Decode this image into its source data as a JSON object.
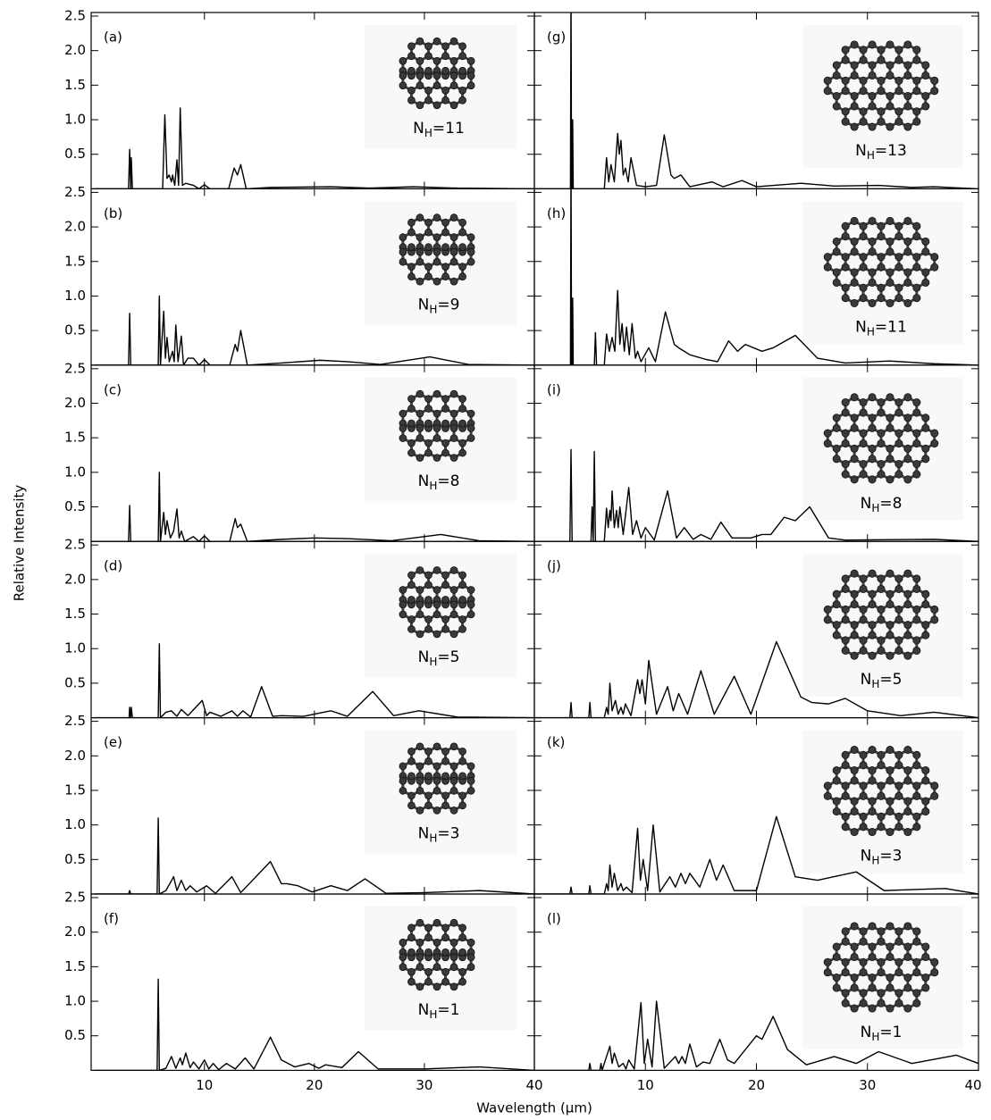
{
  "y_label": "Relative Intensity",
  "x_label": "Wavelength (μm)",
  "chart_data": [
    {
      "type": "line",
      "panel_label": "(a)",
      "inset_label": [
        "N",
        "H",
        "=11"
      ],
      "color": "#000000",
      "x": [
        0,
        3.1,
        3.2,
        3.3,
        3.35,
        3.45,
        6.2,
        6.4,
        6.6,
        6.8,
        7.0,
        7.1,
        7.3,
        7.5,
        7.65,
        7.8,
        8.0,
        8.3,
        9,
        9.5,
        10,
        10.5,
        12.2,
        12.7,
        13.0,
        13.3,
        13.8,
        16,
        21.5,
        25,
        29,
        33,
        40
      ],
      "values": [
        0,
        0,
        0.57,
        0,
        0.45,
        0,
        0,
        1.07,
        0.15,
        0.2,
        0.1,
        0.2,
        0.05,
        0.42,
        0.05,
        1.17,
        0.05,
        0.08,
        0.05,
        0,
        0.06,
        0,
        0,
        0.3,
        0.2,
        0.35,
        0,
        0.02,
        0.03,
        0.01,
        0.03,
        0.01,
        0
      ],
      "xlim": [
        -0.3,
        40
      ],
      "ylim": [
        0,
        2.5
      ],
      "xticks": [
        10,
        20,
        30,
        40
      ],
      "yticks": [
        0.5,
        {
          "value": 1,
          "label": "1.0"
        },
        1.5,
        {
          "value": 2,
          "label": "2.0"
        },
        2.5
      ]
    },
    {
      "type": "line",
      "panel_label": "(b)",
      "inset_label": [
        "N",
        "H",
        "=9"
      ],
      "color": "#000000",
      "x": [
        0,
        3.1,
        3.2,
        3.3,
        5.8,
        5.9,
        6.0,
        6.3,
        6.45,
        6.6,
        6.8,
        7.1,
        7.25,
        7.4,
        7.6,
        7.9,
        8.1,
        8.5,
        9,
        9.5,
        10,
        10.5,
        12.3,
        12.8,
        13.0,
        13.3,
        13.9,
        17,
        20.5,
        23,
        26,
        30.5,
        34,
        40
      ],
      "values": [
        0,
        0,
        0.75,
        0,
        0,
        1.0,
        0,
        0.78,
        0.1,
        0.4,
        0.05,
        0.2,
        0.05,
        0.58,
        0.05,
        0.42,
        0,
        0.1,
        0.1,
        0,
        0.08,
        0,
        0,
        0.3,
        0.2,
        0.5,
        0,
        0.03,
        0.07,
        0.05,
        0.01,
        0.12,
        0.01,
        0
      ],
      "xlim": [
        -0.3,
        40
      ],
      "ylim": [
        0,
        2.5
      ],
      "xticks": [
        10,
        20,
        30,
        40
      ],
      "yticks": [
        0.5,
        {
          "value": 1,
          "label": "1.0"
        },
        1.5,
        {
          "value": 2,
          "label": "2.0"
        },
        2.5
      ]
    },
    {
      "type": "line",
      "panel_label": "(c)",
      "inset_label": [
        "N",
        "H",
        "=8"
      ],
      "color": "#000000",
      "x": [
        0,
        3.1,
        3.2,
        3.3,
        5.8,
        5.9,
        6.0,
        6.3,
        6.45,
        6.6,
        6.9,
        7.2,
        7.5,
        7.7,
        7.9,
        8.2,
        9,
        9.5,
        10,
        10.5,
        12.3,
        12.8,
        13.0,
        13.3,
        13.9,
        17,
        20,
        23,
        27,
        31.5,
        35,
        40
      ],
      "values": [
        0,
        0,
        0.52,
        0,
        0,
        1.0,
        0,
        0.42,
        0.1,
        0.3,
        0.05,
        0.15,
        0.47,
        0.05,
        0.15,
        0,
        0.07,
        0,
        0.08,
        0,
        0,
        0.33,
        0.2,
        0.25,
        0,
        0.03,
        0.05,
        0.04,
        0.01,
        0.1,
        0.01,
        0
      ],
      "xlim": [
        -0.3,
        40
      ],
      "ylim": [
        0,
        2.5
      ],
      "xticks": [
        10,
        20,
        30,
        40
      ],
      "yticks": [
        0.5,
        {
          "value": 1,
          "label": "1.0"
        },
        1.5,
        {
          "value": 2,
          "label": "2.0"
        },
        2.5
      ]
    },
    {
      "type": "line",
      "panel_label": "(d)",
      "inset_label": [
        "N",
        "H",
        "=5"
      ],
      "color": "#000000",
      "x": [
        0,
        3.15,
        3.2,
        3.3,
        3.35,
        3.45,
        5.8,
        5.9,
        6.0,
        6.5,
        7.0,
        7.5,
        7.9,
        8.5,
        9.8,
        10.2,
        10.5,
        11.5,
        12.5,
        13,
        13.5,
        14.2,
        15.2,
        16.2,
        17,
        19,
        21.5,
        23,
        25.3,
        27.2,
        29.5,
        33,
        40
      ],
      "values": [
        0,
        0,
        0.15,
        0,
        0.15,
        0,
        0,
        1.07,
        0,
        0.08,
        0.1,
        0.02,
        0.12,
        0.03,
        0.25,
        0.03,
        0.08,
        0.02,
        0.1,
        0.02,
        0.1,
        0.01,
        0.45,
        0.02,
        0.03,
        0.02,
        0.1,
        0.02,
        0.38,
        0.03,
        0.1,
        0.01,
        0
      ],
      "xlim": [
        -0.3,
        40
      ],
      "ylim": [
        0,
        2.5
      ],
      "xticks": [
        10,
        20,
        30,
        40
      ],
      "yticks": [
        0.5,
        {
          "value": 1,
          "label": "1.0"
        },
        1.5,
        {
          "value": 2,
          "label": "2.0"
        },
        2.5
      ]
    },
    {
      "type": "line",
      "panel_label": "(e)",
      "inset_label": [
        "N",
        "H",
        "=3"
      ],
      "color": "#000000",
      "x": [
        0,
        3.1,
        3.2,
        3.3,
        5.7,
        5.8,
        5.9,
        6.5,
        7.2,
        7.5,
        7.9,
        8.3,
        8.7,
        9.3,
        10.2,
        11,
        12.5,
        13.3,
        16,
        17,
        17.5,
        18.5,
        19.8,
        21.5,
        23,
        24.6,
        26.5,
        30,
        35,
        40
      ],
      "values": [
        0,
        0,
        0.05,
        0,
        0,
        1.1,
        0,
        0.05,
        0.25,
        0.05,
        0.2,
        0.05,
        0.12,
        0.03,
        0.12,
        0.01,
        0.25,
        0.02,
        0.47,
        0.15,
        0.15,
        0.12,
        0.03,
        0.12,
        0.05,
        0.22,
        0.01,
        0.02,
        0.05,
        0
      ],
      "xlim": [
        -0.3,
        40
      ],
      "ylim": [
        0,
        2.5
      ],
      "xticks": [
        10,
        20,
        30,
        40
      ],
      "yticks": [
        0.5,
        {
          "value": 1,
          "label": "1.0"
        },
        1.5,
        {
          "value": 2,
          "label": "2.0"
        },
        2.5
      ]
    },
    {
      "type": "line",
      "panel_label": "(f)",
      "inset_label": [
        "N",
        "H",
        "=1"
      ],
      "color": "#000000",
      "x": [
        0,
        5.7,
        5.8,
        5.9,
        6.5,
        7.0,
        7.4,
        7.8,
        8.0,
        8.3,
        8.7,
        9.0,
        9.5,
        10,
        10.4,
        10.8,
        11.3,
        12,
        12.8,
        13.7,
        14.5,
        16,
        17,
        18.2,
        19.5,
        20.4,
        21,
        22.5,
        24,
        25.8,
        30,
        35,
        40
      ],
      "values": [
        0,
        0,
        1.32,
        0,
        0.03,
        0.2,
        0.03,
        0.18,
        0.08,
        0.25,
        0.04,
        0.12,
        0.02,
        0.15,
        0.02,
        0.1,
        0.01,
        0.1,
        0.02,
        0.18,
        0.02,
        0.48,
        0.15,
        0.05,
        0.1,
        0.03,
        0.08,
        0.04,
        0.27,
        0.02,
        0.02,
        0.05,
        0
      ],
      "xlim": [
        -0.3,
        40
      ],
      "ylim": [
        0,
        2.5
      ],
      "xticks": [
        10,
        20,
        30,
        40
      ],
      "yticks": [
        0.5,
        {
          "value": 1,
          "label": "1.0"
        },
        1.5,
        {
          "value": 2,
          "label": "2.0"
        },
        2.5
      ]
    },
    {
      "type": "line",
      "panel_label": "(g)",
      "inset_label": [
        "N",
        "H",
        "=13"
      ],
      "color": "#000000",
      "x": [
        0,
        3.25,
        3.3,
        3.35,
        3.4,
        3.45,
        3.5,
        6.3,
        6.5,
        6.7,
        6.9,
        7.2,
        7.5,
        7.65,
        7.8,
        8.0,
        8.2,
        8.45,
        8.7,
        9.2,
        10,
        11,
        11.7,
        12.3,
        12.6,
        13.2,
        14,
        16,
        17,
        18.7,
        20,
        24,
        27,
        31,
        34,
        36,
        40
      ],
      "values": [
        0,
        0,
        3.0,
        0,
        0,
        1.0,
        0,
        0,
        0.45,
        0.1,
        0.35,
        0.1,
        0.8,
        0.5,
        0.7,
        0.2,
        0.3,
        0.1,
        0.45,
        0.05,
        0.03,
        0.05,
        0.78,
        0.2,
        0.15,
        0.2,
        0.03,
        0.1,
        0.03,
        0.12,
        0.03,
        0.08,
        0.04,
        0.05,
        0.02,
        0.03,
        0
      ],
      "xlim": [
        0,
        40
      ],
      "ylim": [
        0,
        2.5
      ],
      "xticks": [
        10,
        20,
        30,
        40
      ],
      "yticks": [
        0.5,
        {
          "value": 1,
          "label": "1.0"
        },
        1.5,
        {
          "value": 2,
          "label": "2.0"
        },
        2.5
      ]
    },
    {
      "type": "line",
      "panel_label": "(h)",
      "inset_label": [
        "N",
        "H",
        "=11"
      ],
      "color": "#000000",
      "x": [
        0,
        3.25,
        3.3,
        3.35,
        3.4,
        3.45,
        3.5,
        5.4,
        5.5,
        5.6,
        6.3,
        6.5,
        6.75,
        7.0,
        7.25,
        7.5,
        7.7,
        7.9,
        8.1,
        8.3,
        8.55,
        8.8,
        9.1,
        9.3,
        9.6,
        10.3,
        10.9,
        11.8,
        12.6,
        13,
        14,
        15.5,
        16.5,
        17.5,
        18.3,
        19,
        20.5,
        21.5,
        23.5,
        25.5,
        28,
        32,
        36,
        40
      ],
      "values": [
        0,
        0,
        3.0,
        0,
        0,
        0.97,
        0,
        0,
        0.47,
        0,
        0,
        0.45,
        0.2,
        0.4,
        0.2,
        1.08,
        0.3,
        0.6,
        0.2,
        0.55,
        0.15,
        0.6,
        0.1,
        0.2,
        0.05,
        0.25,
        0.05,
        0.77,
        0.3,
        0.25,
        0.15,
        0.08,
        0.05,
        0.35,
        0.2,
        0.3,
        0.2,
        0.25,
        0.43,
        0.1,
        0.03,
        0.06,
        0.02,
        0
      ],
      "xlim": [
        0,
        40
      ],
      "ylim": [
        0,
        2.5
      ],
      "xticks": [
        10,
        20,
        30,
        40
      ],
      "yticks": [
        0.5,
        {
          "value": 1,
          "label": "1.0"
        },
        1.5,
        {
          "value": 2,
          "label": "2.0"
        },
        2.5
      ]
    },
    {
      "type": "line",
      "panel_label": "(i)",
      "inset_label": [
        "N",
        "H",
        "=8"
      ],
      "color": "#000000",
      "x": [
        0,
        3.2,
        3.3,
        3.4,
        5.1,
        5.2,
        5.3,
        5.4,
        5.5,
        6.3,
        6.5,
        6.65,
        6.8,
        6.9,
        7.0,
        7.2,
        7.4,
        7.55,
        7.7,
        8.0,
        8.5,
        8.85,
        9.2,
        9.6,
        10,
        10.8,
        12,
        12.8,
        13.5,
        14.3,
        15,
        15.9,
        16.8,
        17.8,
        18.5,
        19.5,
        20.5,
        21.3,
        22.5,
        23.5,
        24.8,
        26.5,
        28,
        36,
        40
      ],
      "values": [
        0,
        0,
        1.33,
        0,
        0,
        0.5,
        0,
        1.3,
        0,
        0,
        0.48,
        0.2,
        0.45,
        0.3,
        0.73,
        0.2,
        0.45,
        0.2,
        0.5,
        0.1,
        0.78,
        0.1,
        0.3,
        0.05,
        0.2,
        0.02,
        0.73,
        0.05,
        0.2,
        0.03,
        0.1,
        0.03,
        0.28,
        0.05,
        0.05,
        0.05,
        0.1,
        0.1,
        0.35,
        0.3,
        0.5,
        0.05,
        0.02,
        0.03,
        0
      ],
      "xlim": [
        0,
        40
      ],
      "ylim": [
        0,
        2.5
      ],
      "xticks": [
        10,
        20,
        30,
        40
      ],
      "yticks": [
        0.5,
        {
          "value": 1,
          "label": "1.0"
        },
        1.5,
        {
          "value": 2,
          "label": "2.0"
        },
        2.5
      ]
    },
    {
      "type": "line",
      "panel_label": "(j)",
      "inset_label": [
        "N",
        "H",
        "=5"
      ],
      "color": "#000000",
      "x": [
        0,
        3.2,
        3.3,
        3.4,
        4.9,
        5.0,
        5.1,
        6.3,
        6.5,
        6.65,
        6.8,
        7.0,
        7.3,
        7.55,
        7.8,
        8.0,
        8.2,
        8.7,
        9.3,
        9.5,
        9.7,
        10.0,
        10.3,
        11,
        12,
        12.5,
        13,
        13.8,
        15,
        16.2,
        18,
        19.5,
        21.8,
        24,
        25,
        26.5,
        28,
        30,
        33,
        36,
        40
      ],
      "values": [
        0,
        0,
        0.22,
        0,
        0,
        0.22,
        0,
        0,
        0.15,
        0.05,
        0.5,
        0.1,
        0.25,
        0.05,
        0.15,
        0.05,
        0.2,
        0.03,
        0.55,
        0.35,
        0.55,
        0.2,
        0.83,
        0.05,
        0.45,
        0.1,
        0.35,
        0.05,
        0.68,
        0.05,
        0.6,
        0.05,
        1.1,
        0.3,
        0.22,
        0.2,
        0.28,
        0.1,
        0.03,
        0.08,
        0
      ],
      "xlim": [
        0,
        40
      ],
      "ylim": [
        0,
        2.5
      ],
      "xticks": [
        10,
        20,
        30,
        40
      ],
      "yticks": [
        0.5,
        {
          "value": 1,
          "label": "1.0"
        },
        1.5,
        {
          "value": 2,
          "label": "2.0"
        },
        2.5
      ]
    },
    {
      "type": "line",
      "panel_label": "(k)",
      "inset_label": [
        "N",
        "H",
        "=3"
      ],
      "color": "#000000",
      "x": [
        0,
        3.2,
        3.3,
        3.4,
        4.9,
        5.0,
        5.1,
        6.3,
        6.5,
        6.65,
        6.8,
        7.0,
        7.2,
        7.5,
        7.8,
        8.0,
        8.3,
        8.8,
        9.3,
        9.55,
        9.8,
        10.2,
        10.7,
        11.3,
        12.2,
        12.7,
        13.2,
        13.6,
        14,
        14.9,
        15.8,
        16.4,
        17,
        18,
        19,
        20,
        21.8,
        23.5,
        25.5,
        29,
        31.5,
        37,
        40
      ],
      "values": [
        0,
        0,
        0.1,
        0,
        0,
        0.12,
        0,
        0,
        0.15,
        0.05,
        0.42,
        0.1,
        0.3,
        0.05,
        0.15,
        0.05,
        0.1,
        0.02,
        0.95,
        0.2,
        0.5,
        0.05,
        1.0,
        0.03,
        0.25,
        0.1,
        0.3,
        0.15,
        0.3,
        0.1,
        0.5,
        0.2,
        0.42,
        0.05,
        0.05,
        0.05,
        1.12,
        0.25,
        0.2,
        0.32,
        0.05,
        0.08,
        0
      ],
      "xlim": [
        0,
        40
      ],
      "ylim": [
        0,
        2.5
      ],
      "xticks": [
        10,
        20,
        30,
        40
      ],
      "yticks": [
        0.5,
        {
          "value": 1,
          "label": "1.0"
        },
        1.5,
        {
          "value": 2,
          "label": "2.0"
        },
        2.5
      ]
    },
    {
      "type": "line",
      "panel_label": "(l)",
      "inset_label": [
        "N",
        "H",
        "=1"
      ],
      "color": "#000000",
      "x": [
        0,
        4.9,
        5.0,
        5.1,
        5.9,
        6.0,
        6.1,
        6.8,
        7.0,
        7.2,
        7.6,
        8.0,
        8.25,
        8.5,
        9,
        9.6,
        9.9,
        10.2,
        10.6,
        11,
        11.7,
        12.7,
        13,
        13.3,
        13.6,
        14,
        14.6,
        15.2,
        15.8,
        16.7,
        17.4,
        18,
        19,
        20,
        20.5,
        21.5,
        22.8,
        24.5,
        27,
        29,
        31,
        34,
        38,
        40
      ],
      "values": [
        0,
        0,
        0.1,
        0,
        0,
        0.1,
        0,
        0.35,
        0.1,
        0.25,
        0.05,
        0.1,
        0.02,
        0.15,
        0.02,
        0.98,
        0.1,
        0.45,
        0.05,
        1.0,
        0.03,
        0.2,
        0.1,
        0.2,
        0.1,
        0.38,
        0.05,
        0.12,
        0.1,
        0.45,
        0.15,
        0.1,
        0.3,
        0.5,
        0.45,
        0.78,
        0.3,
        0.08,
        0.2,
        0.1,
        0.27,
        0.1,
        0.22,
        0.1
      ],
      "xlim": [
        0,
        40
      ],
      "ylim": [
        0,
        2.5
      ],
      "xticks": [
        10,
        20,
        30,
        40
      ],
      "yticks": [
        0.5,
        {
          "value": 1,
          "label": "1.0"
        },
        1.5,
        {
          "value": 2,
          "label": "2.0"
        },
        2.5
      ]
    }
  ]
}
